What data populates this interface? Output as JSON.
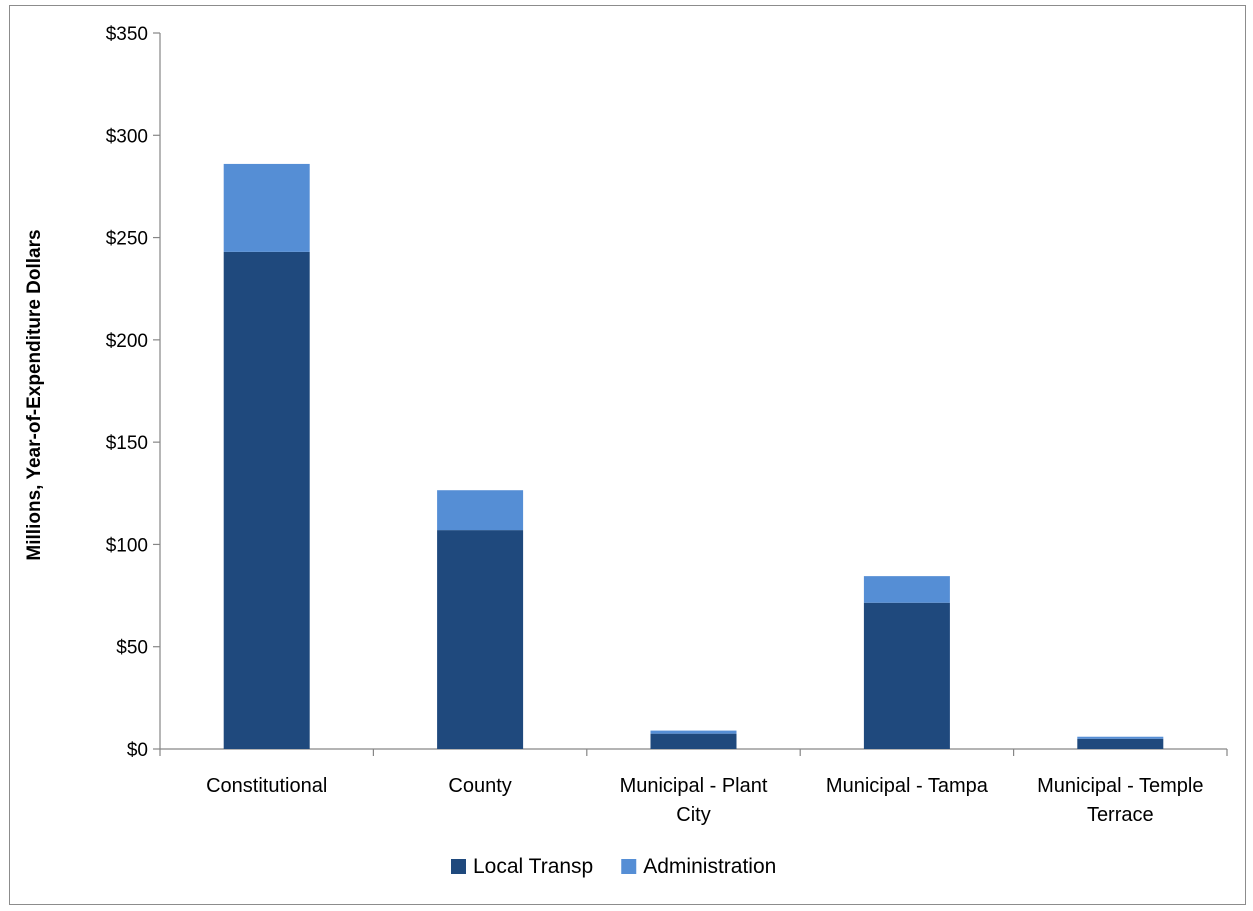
{
  "chart_data": {
    "type": "bar",
    "stacked": true,
    "categories": [
      [
        "Constitutional"
      ],
      [
        "County"
      ],
      [
        "Municipal - Plant",
        "City"
      ],
      [
        "Municipal - Tampa"
      ],
      [
        "Municipal - Temple",
        "Terrace"
      ]
    ],
    "series": [
      {
        "name": "Local Transp",
        "color": "#1f497d",
        "values": [
          243,
          107,
          7.5,
          71.5,
          5
        ]
      },
      {
        "name": "Administration",
        "color": "#558ed5",
        "values": [
          43,
          19.5,
          1.5,
          13,
          1
        ]
      }
    ],
    "ylabel": "Millions, Year-of-Expenditure Dollars",
    "xlabel": "",
    "ylim": [
      0,
      350
    ],
    "yticks": [
      0,
      50,
      100,
      150,
      200,
      250,
      300,
      350
    ],
    "ytick_labels": [
      "$0",
      "$50",
      "$100",
      "$150",
      "$200",
      "$250",
      "$300",
      "$350"
    ],
    "grid": false,
    "legend_position": "bottom"
  }
}
